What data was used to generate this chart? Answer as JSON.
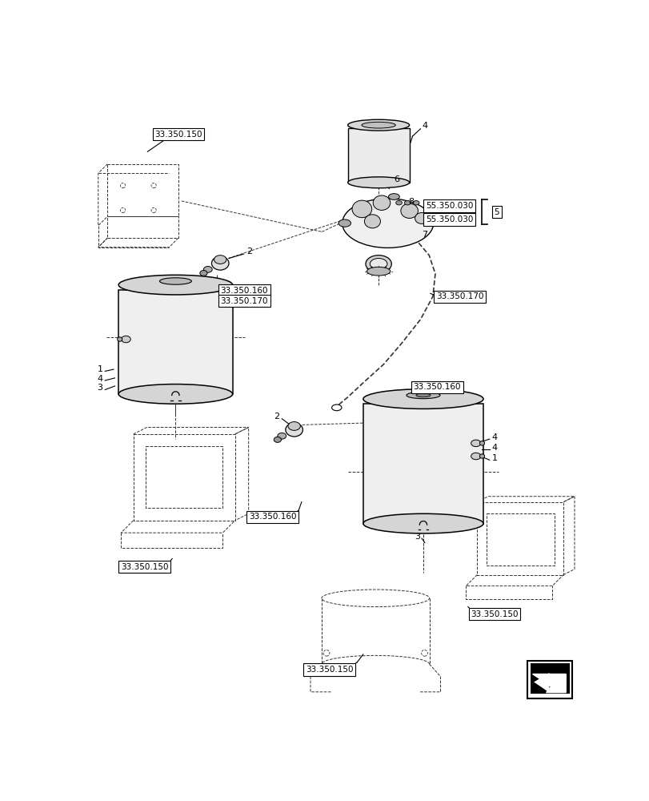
{
  "bg_color": "#ffffff",
  "line_color": "#000000",
  "font_size_label": 7.5,
  "font_size_num": 8.0
}
